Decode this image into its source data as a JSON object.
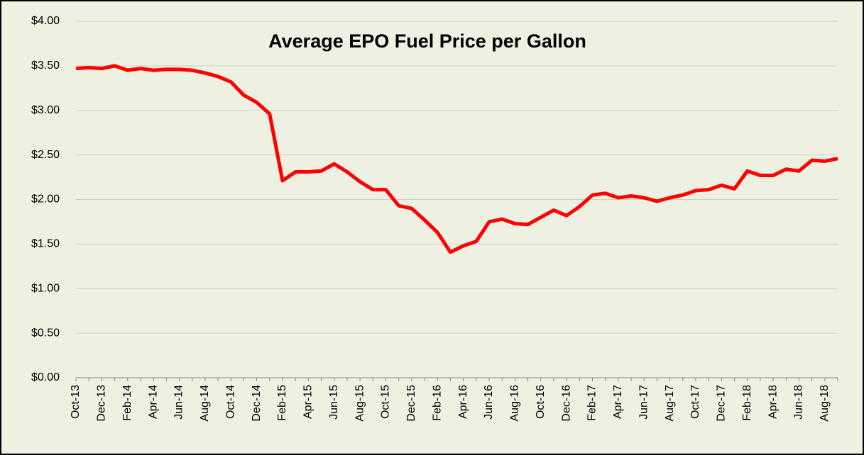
{
  "chart_data": {
    "type": "line",
    "title": "Average EPO Fuel Price per Gallon",
    "categories": [
      "Oct-13",
      null,
      "Dec-13",
      null,
      "Feb-14",
      null,
      "Apr-14",
      null,
      "Jun-14",
      null,
      "Aug-14",
      null,
      "Oct-14",
      null,
      "Dec-14",
      null,
      "Feb-15",
      null,
      "Apr-15",
      null,
      "Jun-15",
      null,
      "Aug-15",
      null,
      "Oct-15",
      null,
      "Dec-15",
      null,
      "Feb-16",
      null,
      "Apr-16",
      null,
      "Jun-16",
      null,
      "Aug-16",
      null,
      "Oct-16",
      null,
      "Dec-16",
      null,
      "Feb-17",
      null,
      "Apr-17",
      null,
      "Jun-17",
      null,
      "Aug-17",
      null,
      "Oct-17",
      null,
      "Dec-17",
      null,
      "Feb-18",
      null,
      "Apr-18",
      null,
      "Jun-18",
      null,
      "Aug-18",
      null
    ],
    "series": [
      {
        "name": "Average EPO Fuel Price",
        "color": "#ff0000",
        "values": [
          3.47,
          3.48,
          3.47,
          3.5,
          3.45,
          3.47,
          3.45,
          3.46,
          3.46,
          3.45,
          3.42,
          3.38,
          3.32,
          3.17,
          3.09,
          2.96,
          2.21,
          2.31,
          2.31,
          2.32,
          2.4,
          2.31,
          2.2,
          2.11,
          2.11,
          1.93,
          1.9,
          1.77,
          1.63,
          1.41,
          1.48,
          1.53,
          1.75,
          1.78,
          1.73,
          1.72,
          1.8,
          1.88,
          1.82,
          1.92,
          2.05,
          2.07,
          2.02,
          2.04,
          2.02,
          1.98,
          2.02,
          2.05,
          2.1,
          2.11,
          2.16,
          2.12,
          2.32,
          2.27,
          2.27,
          2.34,
          2.32,
          2.44,
          2.43,
          2.46
        ]
      }
    ],
    "ylim": [
      0,
      4
    ],
    "yticks": [
      {
        "value": 0,
        "label": "$0.00"
      },
      {
        "value": 0.5,
        "label": "$0.50"
      },
      {
        "value": 1,
        "label": "$1.00"
      },
      {
        "value": 1.5,
        "label": "$1.50"
      },
      {
        "value": 2,
        "label": "$2.00"
      },
      {
        "value": 2.5,
        "label": "$2.50"
      },
      {
        "value": 3,
        "label": "$3.00"
      },
      {
        "value": 3.5,
        "label": "$3.50"
      },
      {
        "value": 4,
        "label": "$4.00"
      }
    ],
    "grid": true
  }
}
